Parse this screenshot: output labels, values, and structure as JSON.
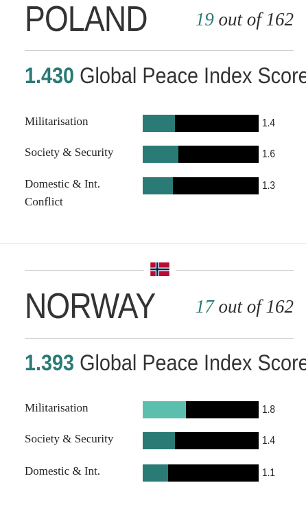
{
  "poland": {
    "name": "POLAND",
    "rank_num": "19",
    "rank_suffix": " out of 162",
    "score_value": "1.430",
    "score_label": " Global Peace Index Score",
    "indicators": [
      {
        "label": "Militarisation",
        "value": "1.4",
        "level": 0.28
      },
      {
        "label": "Society & Security",
        "value": "1.6",
        "level": 0.31
      },
      {
        "label": "Domestic & Int. Conflict",
        "value": "1.3",
        "level": 0.26
      }
    ]
  },
  "norway": {
    "name": "NORWAY",
    "rank_num": "17",
    "rank_suffix": " out of 162",
    "score_value": "1.393",
    "score_label": " Global Peace Index Score",
    "flag_icon": "norway-flag-icon",
    "indicators": [
      {
        "label": "Militarisation",
        "value": "1.8",
        "level": 0.37
      },
      {
        "label": "Society & Security",
        "value": "1.4",
        "level": 0.28
      },
      {
        "label": "Domestic & Int.",
        "value": "1.1",
        "level": 0.22
      }
    ]
  },
  "colors": {
    "accent": "#2a7a76",
    "accent_light": "#5cbfae",
    "bar_background": "#000000",
    "flag_red": "#ba0c2f",
    "flag_blue": "#00205b"
  }
}
